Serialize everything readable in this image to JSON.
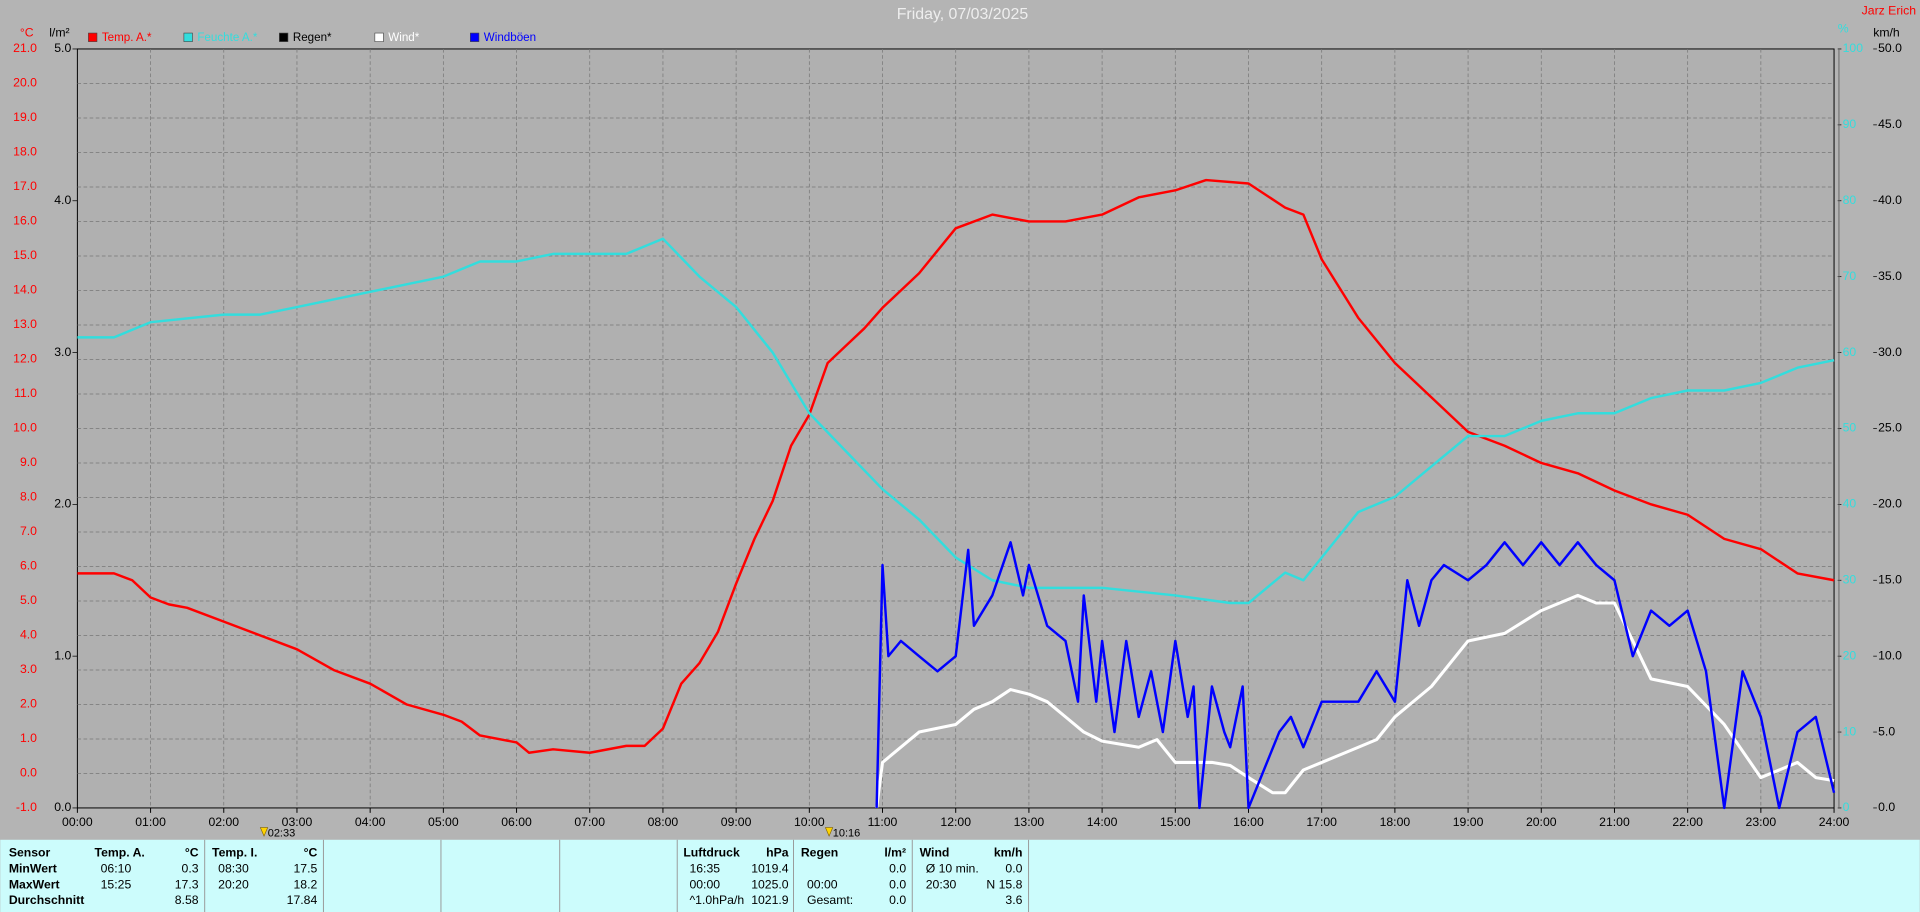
{
  "chart_data": {
    "type": "line",
    "title": "Friday, 07/03/2025",
    "station": "Jarz Erich",
    "axis_units": {
      "y": "°C",
      "y2": "l/m²",
      "y3": "%",
      "y4": "km/h"
    },
    "xlim": [
      0,
      24
    ],
    "xticks": [
      {
        "value": 0,
        "label": "00:00"
      },
      {
        "value": 1,
        "label": "01:00"
      },
      {
        "value": 2,
        "label": "02:00"
      },
      {
        "value": 3,
        "label": "03:00"
      },
      {
        "value": 4,
        "label": "04:00"
      },
      {
        "value": 5,
        "label": "05:00"
      },
      {
        "value": 6,
        "label": "06:00"
      },
      {
        "value": 7,
        "label": "07:00"
      },
      {
        "value": 8,
        "label": "08:00"
      },
      {
        "value": 9,
        "label": "09:00"
      },
      {
        "value": 10,
        "label": "10:00"
      },
      {
        "value": 11,
        "label": "11:00"
      },
      {
        "value": 12,
        "label": "12:00"
      },
      {
        "value": 13,
        "label": "13:00"
      },
      {
        "value": 14,
        "label": "14:00"
      },
      {
        "value": 15,
        "label": "15:00"
      },
      {
        "value": 16,
        "label": "16:00"
      },
      {
        "value": 17,
        "label": "17:00"
      },
      {
        "value": 18,
        "label": "18:00"
      },
      {
        "value": 19,
        "label": "19:00"
      },
      {
        "value": 20,
        "label": "20:00"
      },
      {
        "value": 21,
        "label": "21:00"
      },
      {
        "value": 22,
        "label": "22:00"
      },
      {
        "value": 23,
        "label": "23:00"
      },
      {
        "value": 24,
        "label": "24:00"
      }
    ],
    "ylim": [
      -1,
      21
    ],
    "yticks": [
      {
        "value": -1,
        "label": "-1.0"
      },
      {
        "value": 0,
        "label": "0.0"
      },
      {
        "value": 1,
        "label": "1.0"
      },
      {
        "value": 2,
        "label": "2.0"
      },
      {
        "value": 3,
        "label": "3.0"
      },
      {
        "value": 4,
        "label": "4.0"
      },
      {
        "value": 5,
        "label": "5.0"
      },
      {
        "value": 6,
        "label": "6.0"
      },
      {
        "value": 7,
        "label": "7.0"
      },
      {
        "value": 8,
        "label": "8.0"
      },
      {
        "value": 9,
        "label": "9.0"
      },
      {
        "value": 10,
        "label": "10.0"
      },
      {
        "value": 11,
        "label": "11.0"
      },
      {
        "value": 12,
        "label": "12.0"
      },
      {
        "value": 13,
        "label": "13.0"
      },
      {
        "value": 14,
        "label": "14.0"
      },
      {
        "value": 15,
        "label": "15.0"
      },
      {
        "value": 16,
        "label": "16.0"
      },
      {
        "value": 17,
        "label": "17.0"
      },
      {
        "value": 18,
        "label": "18.0"
      },
      {
        "value": 19,
        "label": "19.0"
      },
      {
        "value": 20,
        "label": "20.0"
      },
      {
        "value": 21,
        "label": "21.0"
      }
    ],
    "y2lim": [
      0,
      5
    ],
    "y2ticks": [
      {
        "value": 0,
        "label": "0.0"
      },
      {
        "value": 1,
        "label": "1.0"
      },
      {
        "value": 2,
        "label": "2.0"
      },
      {
        "value": 3,
        "label": "3.0"
      },
      {
        "value": 4,
        "label": "4.0"
      },
      {
        "value": 5,
        "label": "5.0"
      }
    ],
    "y3lim": [
      0,
      100
    ],
    "y3ticks": [
      0,
      10,
      20,
      30,
      40,
      50,
      60,
      70,
      80,
      90,
      100
    ],
    "y4lim": [
      0,
      50
    ],
    "y4ticks": [
      {
        "value": 0,
        "label": "0.0"
      },
      {
        "value": 5,
        "label": "5.0"
      },
      {
        "value": 10,
        "label": "10.0"
      },
      {
        "value": 15,
        "label": "15.0"
      },
      {
        "value": 20,
        "label": "20.0"
      },
      {
        "value": 25,
        "label": "25.0"
      },
      {
        "value": 30,
        "label": "30.0"
      },
      {
        "value": 35,
        "label": "35.0"
      },
      {
        "value": 40,
        "label": "40.0"
      },
      {
        "value": 45,
        "label": "45.0"
      },
      {
        "value": 50,
        "label": "50.0"
      }
    ],
    "grid": true,
    "annotations": [
      {
        "x": 2.55,
        "label": "02:33"
      },
      {
        "x": 10.27,
        "label": "10:16"
      }
    ],
    "series": [
      {
        "name": "Temp. A.*",
        "color": "#ff0000",
        "axis": "y",
        "x": [
          0,
          0.5,
          0.75,
          1,
          1.25,
          1.5,
          2,
          2.5,
          3,
          3.5,
          4,
          4.5,
          5,
          5.25,
          5.5,
          6,
          6.17,
          6.5,
          7,
          7.5,
          7.75,
          8,
          8.25,
          8.5,
          8.75,
          9,
          9.25,
          9.5,
          9.75,
          10,
          10.25,
          10.5,
          10.75,
          11,
          11.5,
          12,
          12.5,
          13,
          13.5,
          14,
          14.5,
          15,
          15.42,
          16,
          16.5,
          16.75,
          17,
          17.5,
          18,
          18.5,
          19,
          19.5,
          20,
          20.5,
          21,
          21.5,
          22,
          22.5,
          23,
          23.5,
          24
        ],
        "values": [
          5.8,
          5.8,
          5.6,
          5.1,
          4.9,
          4.8,
          4.4,
          4.0,
          3.6,
          3.0,
          2.6,
          2.0,
          1.7,
          1.5,
          1.1,
          0.9,
          0.6,
          0.7,
          0.6,
          0.8,
          0.8,
          1.3,
          2.6,
          3.2,
          4.1,
          5.5,
          6.8,
          7.9,
          9.5,
          10.4,
          11.9,
          12.4,
          12.9,
          13.5,
          14.5,
          15.8,
          16.2,
          16.0,
          16.0,
          16.2,
          16.7,
          16.9,
          17.2,
          17.1,
          16.4,
          16.2,
          14.9,
          13.2,
          11.9,
          10.9,
          9.9,
          9.5,
          9.0,
          8.7,
          8.2,
          7.8,
          7.5,
          6.8,
          6.5,
          5.8,
          5.6
        ]
      },
      {
        "name": "Feuchte A.*",
        "color": "#33dddd",
        "axis": "y3",
        "x": [
          0,
          0.5,
          1,
          2,
          2.5,
          3,
          4,
          5,
          5.5,
          6,
          6.5,
          7,
          7.5,
          8,
          8.5,
          9,
          9.5,
          10,
          10.5,
          11,
          11.5,
          12,
          12.5,
          13,
          14,
          15,
          15.75,
          16,
          16.5,
          16.75,
          17,
          17.5,
          18,
          18.5,
          19,
          19.5,
          20,
          20.5,
          21,
          21.5,
          22,
          22.5,
          23,
          23.5,
          24
        ],
        "values": [
          62,
          62,
          64,
          65,
          65,
          66,
          68,
          70,
          72,
          72,
          73,
          73,
          73,
          75,
          70,
          66,
          60,
          52,
          47,
          42,
          38,
          33,
          30,
          29,
          29,
          28,
          27,
          27,
          31,
          30,
          33,
          39,
          41,
          45,
          49,
          49,
          51,
          52,
          52,
          54,
          55,
          55,
          56,
          58,
          59
        ]
      },
      {
        "name": "Regen*",
        "color": "#000000",
        "axis": "y2",
        "x": [],
        "values": []
      },
      {
        "name": "Wind*",
        "color": "#ffffff",
        "axis": "y4",
        "x": [
          10.92,
          11,
          11.25,
          11.5,
          12,
          12.25,
          12.5,
          12.75,
          13,
          13.25,
          13.5,
          13.75,
          14,
          14.5,
          14.75,
          15,
          15.5,
          15.75,
          16,
          16.33,
          16.5,
          16.75,
          17,
          17.5,
          17.75,
          18,
          18.5,
          19,
          19.5,
          20,
          20.5,
          20.75,
          21,
          21.25,
          21.5,
          22,
          22.5,
          23,
          23.5,
          23.75,
          24
        ],
        "values": [
          0,
          3,
          4,
          5,
          5.5,
          6.5,
          7,
          7.8,
          7.5,
          7,
          6,
          5,
          4.4,
          4,
          4.5,
          3,
          3,
          2.8,
          2,
          1,
          1,
          2.5,
          3,
          4,
          4.5,
          6,
          8,
          11,
          11.5,
          13,
          14,
          13.5,
          13.5,
          11,
          8.5,
          8,
          5.5,
          2,
          3,
          2,
          1.8
        ]
      },
      {
        "name": "Windböen",
        "color": "#0000ff",
        "axis": "y4",
        "x": [
          10.92,
          11,
          11.08,
          11.25,
          11.5,
          11.75,
          12,
          12.17,
          12.25,
          12.5,
          12.75,
          12.92,
          13,
          13.25,
          13.5,
          13.67,
          13.75,
          13.92,
          14,
          14.17,
          14.33,
          14.5,
          14.67,
          14.83,
          15,
          15.17,
          15.25,
          15.33,
          15.5,
          15.67,
          15.75,
          15.92,
          16,
          16.42,
          16.58,
          16.75,
          17,
          17.5,
          17.75,
          18,
          18.17,
          18.33,
          18.5,
          18.67,
          19,
          19.25,
          19.5,
          19.75,
          20,
          20.25,
          20.5,
          20.75,
          21,
          21.25,
          21.5,
          21.75,
          22,
          22.25,
          22.5,
          22.75,
          23,
          23.25,
          23.5,
          23.75,
          24
        ],
        "values": [
          0,
          16,
          10,
          11,
          10,
          9,
          10,
          17,
          12,
          14,
          17.5,
          14,
          16,
          12,
          11,
          7,
          14,
          7,
          11,
          5,
          11,
          6,
          9,
          5,
          11,
          6,
          8,
          0,
          8,
          5,
          4,
          8,
          0,
          5,
          6,
          4,
          7,
          7,
          9,
          7,
          15,
          12,
          15,
          16,
          15,
          16,
          17.5,
          16,
          17.5,
          16,
          17.5,
          16,
          15,
          10,
          13,
          12,
          13,
          9,
          0,
          9,
          6,
          0,
          5,
          6,
          1
        ]
      }
    ]
  },
  "table": {
    "sensor_labels": [
      "Sensor",
      "MinWert",
      "MaxWert",
      "Durchschnitt"
    ],
    "groups": [
      {
        "name": "Temp. A.",
        "unit": "°C",
        "rows": [
          {
            "time": "06:10",
            "value": "0.3"
          },
          {
            "time": "15:25",
            "value": "17.3"
          },
          {
            "value": "8.58"
          }
        ]
      },
      {
        "name": "Temp. I.",
        "unit": "°C",
        "rows": [
          {
            "time": "08:30",
            "value": "17.5"
          },
          {
            "time": "20:20",
            "value": "18.2"
          },
          {
            "value": "17.84"
          }
        ]
      },
      {
        "name": "Luftdruck",
        "unit": "hPa",
        "rows": [
          {
            "time": "16:35",
            "value": "1019.4"
          },
          {
            "time": "00:00",
            "value": "1025.0"
          },
          {
            "time": "^1.0hPa/h",
            "value": "1021.9"
          }
        ]
      },
      {
        "name": "Regen",
        "unit": "l/m²",
        "rows": [
          {
            "value": "0.0"
          },
          {
            "time": "00:00",
            "value": "0.0"
          },
          {
            "time": "Gesamt:",
            "value": "0.0"
          }
        ]
      },
      {
        "name": "Wind",
        "unit": "km/h",
        "rows": [
          {
            "time": "Ø 10 min.",
            "value": "0.0"
          },
          {
            "time": "20:30",
            "value": "N 15.8"
          },
          {
            "value": "3.6"
          }
        ]
      }
    ]
  }
}
